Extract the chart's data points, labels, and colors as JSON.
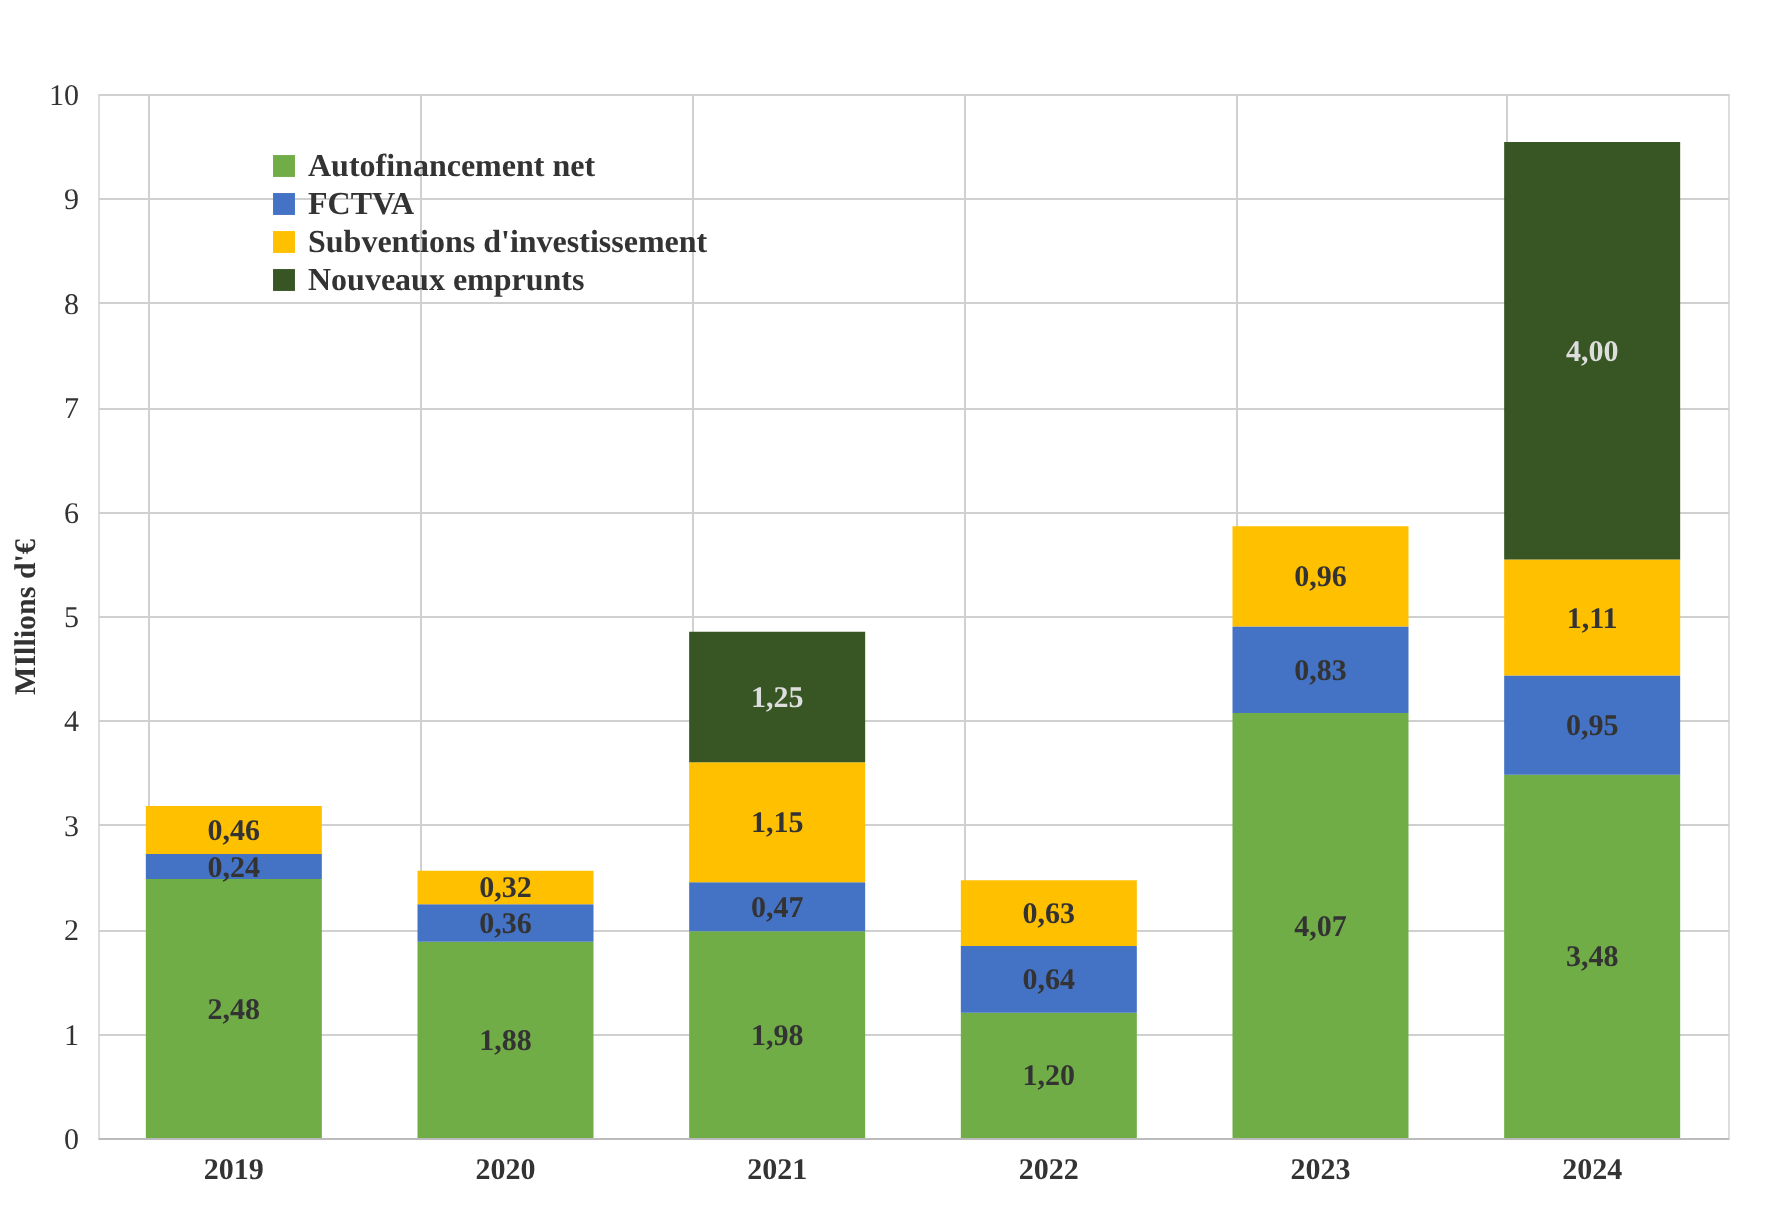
{
  "chart_data": {
    "type": "bar",
    "stacked": true,
    "ylabel": "MIllions d'€",
    "categories": [
      "2019",
      "2020",
      "2021",
      "2022",
      "2023",
      "2024"
    ],
    "series": [
      {
        "name": "Autofinancement net",
        "color": "#70ad47",
        "values": [
          2.48,
          1.88,
          1.98,
          1.2,
          4.07,
          3.48
        ],
        "value_labels": [
          "2,48",
          "1,88",
          "1,98",
          "1,20",
          "4,07",
          "3,48"
        ]
      },
      {
        "name": "FCTVA",
        "color": "#4472c4",
        "values": [
          0.24,
          0.36,
          0.47,
          0.64,
          0.83,
          0.95
        ],
        "value_labels": [
          "0,24",
          "0,36",
          "0,47",
          "0,64",
          "0,83",
          "0,95"
        ]
      },
      {
        "name": "Subventions d'investissement",
        "color": "#ffc000",
        "values": [
          0.46,
          0.32,
          1.15,
          0.63,
          0.96,
          1.11
        ],
        "value_labels": [
          "0,46",
          "0,32",
          "1,15",
          "0,63",
          "0,96",
          "1,11"
        ]
      },
      {
        "name": "Nouveaux emprunts",
        "color": "#375623",
        "values": [
          null,
          null,
          1.25,
          null,
          null,
          4.0
        ],
        "value_labels": [
          null,
          null,
          "1,25",
          null,
          null,
          "4,00"
        ]
      }
    ],
    "ylim": [
      0,
      10
    ],
    "yticks": [
      0,
      1,
      2,
      3,
      4,
      5,
      6,
      7,
      8,
      9,
      10
    ],
    "grid": true,
    "legend": "top left"
  }
}
